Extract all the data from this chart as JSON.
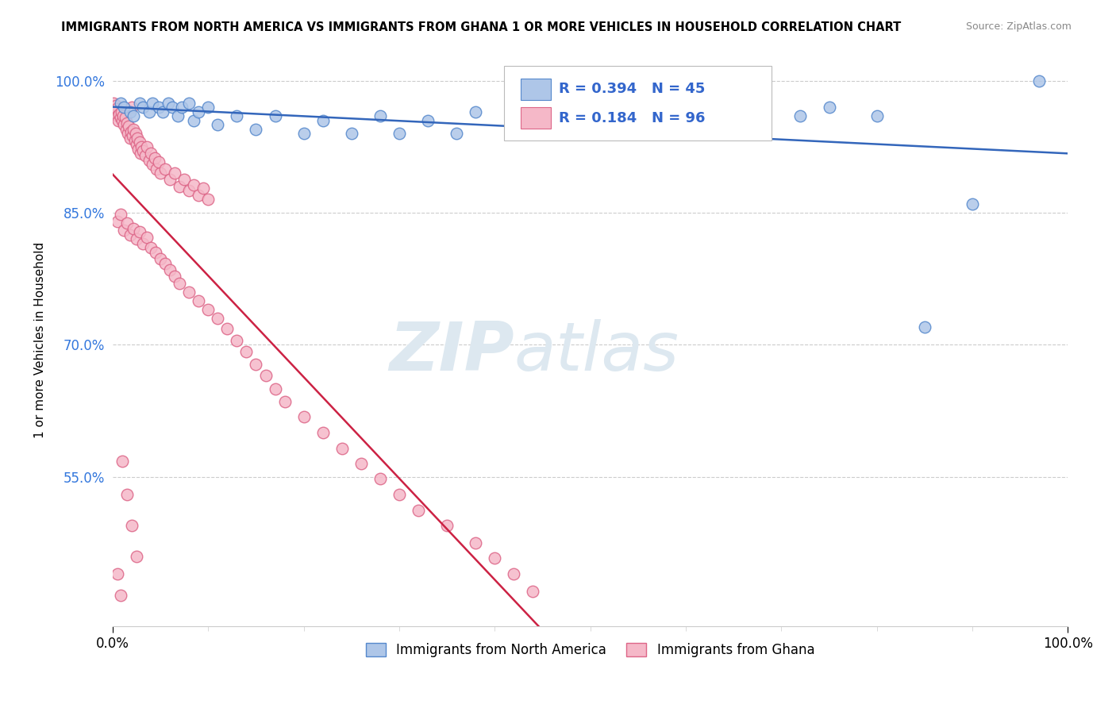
{
  "title": "IMMIGRANTS FROM NORTH AMERICA VS IMMIGRANTS FROM GHANA 1 OR MORE VEHICLES IN HOUSEHOLD CORRELATION CHART",
  "source": "Source: ZipAtlas.com",
  "ylabel": "1 or more Vehicles in Household",
  "xlim": [
    0.0,
    1.0
  ],
  "ylim": [
    0.38,
    1.03
  ],
  "yticks": [
    0.55,
    0.7,
    0.85,
    1.0
  ],
  "ytick_labels": [
    "55.0%",
    "70.0%",
    "85.0%",
    "100.0%"
  ],
  "legend_blue_label": "Immigrants from North America",
  "legend_pink_label": "Immigrants from Ghana",
  "R_blue": 0.394,
  "N_blue": 45,
  "R_pink": 0.184,
  "N_pink": 96,
  "blue_color": "#aec6e8",
  "pink_color": "#f5b8c8",
  "blue_edge": "#5588cc",
  "pink_edge": "#dd6688",
  "trend_blue": "#3366bb",
  "trend_pink": "#cc2244",
  "watermark_zip": "ZIP",
  "watermark_atlas": "atlas",
  "blue_x": [
    0.008,
    0.012,
    0.018,
    0.022,
    0.028,
    0.032,
    0.038,
    0.042,
    0.048,
    0.052,
    0.058,
    0.062,
    0.068,
    0.072,
    0.08,
    0.085,
    0.09,
    0.1,
    0.11,
    0.13,
    0.15,
    0.17,
    0.2,
    0.22,
    0.25,
    0.28,
    0.3,
    0.33,
    0.36,
    0.38,
    0.42,
    0.45,
    0.48,
    0.52,
    0.55,
    0.58,
    0.62,
    0.65,
    0.68,
    0.72,
    0.75,
    0.8,
    0.85,
    0.9,
    0.97
  ],
  "blue_y": [
    0.975,
    0.97,
    0.965,
    0.96,
    0.975,
    0.97,
    0.965,
    0.975,
    0.97,
    0.965,
    0.975,
    0.97,
    0.96,
    0.97,
    0.975,
    0.955,
    0.965,
    0.97,
    0.95,
    0.96,
    0.945,
    0.96,
    0.94,
    0.955,
    0.94,
    0.96,
    0.94,
    0.955,
    0.94,
    0.965,
    0.955,
    0.96,
    0.96,
    0.955,
    0.96,
    0.96,
    0.96,
    0.96,
    0.96,
    0.96,
    0.97,
    0.96,
    0.72,
    0.86,
    1.0
  ],
  "pink_x": [
    0.001,
    0.002,
    0.003,
    0.004,
    0.005,
    0.006,
    0.007,
    0.008,
    0.009,
    0.01,
    0.011,
    0.012,
    0.013,
    0.014,
    0.015,
    0.016,
    0.017,
    0.018,
    0.019,
    0.02,
    0.021,
    0.022,
    0.023,
    0.024,
    0.025,
    0.026,
    0.027,
    0.028,
    0.029,
    0.03,
    0.032,
    0.034,
    0.036,
    0.038,
    0.04,
    0.042,
    0.044,
    0.046,
    0.048,
    0.05,
    0.055,
    0.06,
    0.065,
    0.07,
    0.075,
    0.08,
    0.085,
    0.09,
    0.095,
    0.1,
    0.005,
    0.008,
    0.012,
    0.015,
    0.018,
    0.022,
    0.025,
    0.028,
    0.032,
    0.036,
    0.04,
    0.045,
    0.05,
    0.055,
    0.06,
    0.065,
    0.07,
    0.08,
    0.09,
    0.1,
    0.11,
    0.12,
    0.13,
    0.14,
    0.15,
    0.16,
    0.17,
    0.18,
    0.2,
    0.22,
    0.24,
    0.26,
    0.28,
    0.3,
    0.32,
    0.35,
    0.38,
    0.4,
    0.42,
    0.44,
    0.01,
    0.015,
    0.02,
    0.025,
    0.005,
    0.008
  ],
  "pink_y": [
    0.975,
    0.965,
    0.972,
    0.968,
    0.96,
    0.955,
    0.962,
    0.958,
    0.965,
    0.955,
    0.96,
    0.95,
    0.958,
    0.945,
    0.952,
    0.94,
    0.948,
    0.935,
    0.942,
    0.97,
    0.938,
    0.945,
    0.932,
    0.94,
    0.928,
    0.935,
    0.922,
    0.93,
    0.918,
    0.925,
    0.92,
    0.915,
    0.925,
    0.91,
    0.918,
    0.905,
    0.912,
    0.9,
    0.908,
    0.895,
    0.9,
    0.888,
    0.895,
    0.88,
    0.888,
    0.875,
    0.882,
    0.87,
    0.878,
    0.865,
    0.84,
    0.848,
    0.83,
    0.838,
    0.825,
    0.832,
    0.82,
    0.828,
    0.815,
    0.822,
    0.81,
    0.805,
    0.798,
    0.792,
    0.785,
    0.778,
    0.77,
    0.76,
    0.75,
    0.74,
    0.73,
    0.718,
    0.705,
    0.692,
    0.678,
    0.665,
    0.65,
    0.635,
    0.618,
    0.6,
    0.582,
    0.565,
    0.548,
    0.53,
    0.512,
    0.495,
    0.475,
    0.458,
    0.44,
    0.42,
    0.568,
    0.53,
    0.495,
    0.46,
    0.44,
    0.415
  ]
}
